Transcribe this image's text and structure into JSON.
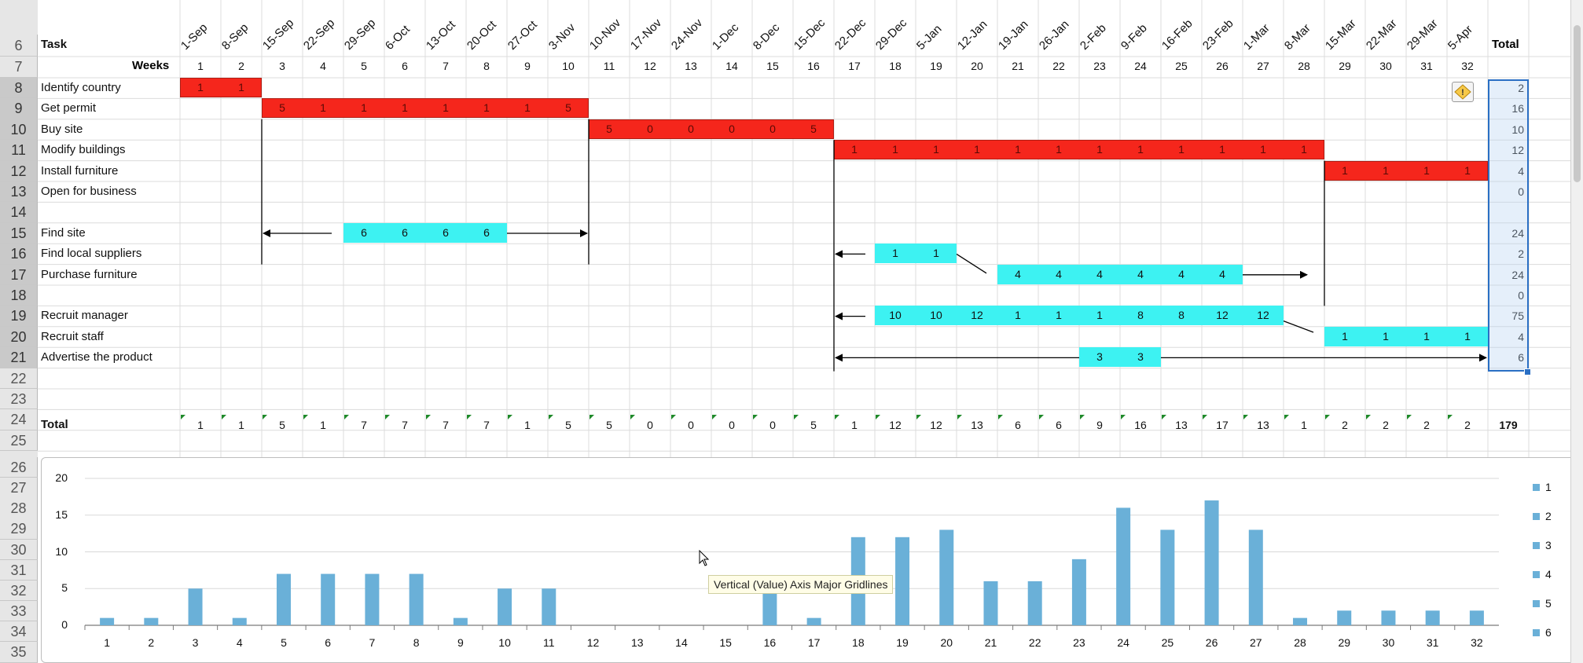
{
  "header": {
    "task_label": "Task",
    "weeks_label": "Weeks",
    "total_label": "Total"
  },
  "dates": [
    "1-Sep",
    "8-Sep",
    "15-Sep",
    "22-Sep",
    "29-Sep",
    "6-Oct",
    "13-Oct",
    "20-Oct",
    "27-Oct",
    "3-Nov",
    "10-Nov",
    "17-Nov",
    "24-Nov",
    "1-Dec",
    "8-Dec",
    "15-Dec",
    "22-Dec",
    "29-Dec",
    "5-Jan",
    "12-Jan",
    "19-Jan",
    "26-Jan",
    "2-Feb",
    "9-Feb",
    "16-Feb",
    "23-Feb",
    "1-Mar",
    "8-Mar",
    "15-Mar",
    "22-Mar",
    "29-Mar",
    "5-Apr"
  ],
  "weeks": [
    1,
    2,
    3,
    4,
    5,
    6,
    7,
    8,
    9,
    10,
    11,
    12,
    13,
    14,
    15,
    16,
    17,
    18,
    19,
    20,
    21,
    22,
    23,
    24,
    25,
    26,
    27,
    28,
    29,
    30,
    31,
    32
  ],
  "row_numbers": [
    "6",
    "7",
    "8",
    "9",
    "10",
    "11",
    "12",
    "13",
    "14",
    "15",
    "16",
    "17",
    "18",
    "19",
    "20",
    "21",
    "22",
    "23",
    "24",
    "25",
    "26",
    "27",
    "28",
    "29",
    "30",
    "31",
    "32",
    "33",
    "34",
    "35"
  ],
  "tasks": [
    {
      "row": "8",
      "name": "Identify country",
      "total": "2",
      "color": "red",
      "cells": [
        {
          "w": 1,
          "v": "1"
        },
        {
          "w": 2,
          "v": "1"
        }
      ]
    },
    {
      "row": "9",
      "name": "Get permit",
      "total": "16",
      "color": "red",
      "cells": [
        {
          "w": 3,
          "v": "5"
        },
        {
          "w": 4,
          "v": "1"
        },
        {
          "w": 5,
          "v": "1"
        },
        {
          "w": 6,
          "v": "1"
        },
        {
          "w": 7,
          "v": "1"
        },
        {
          "w": 8,
          "v": "1"
        },
        {
          "w": 9,
          "v": "1"
        },
        {
          "w": 10,
          "v": "5"
        }
      ]
    },
    {
      "row": "10",
      "name": "Buy site",
      "total": "10",
      "color": "red",
      "cells": [
        {
          "w": 11,
          "v": "5"
        },
        {
          "w": 12,
          "v": "0"
        },
        {
          "w": 13,
          "v": "0"
        },
        {
          "w": 14,
          "v": "0"
        },
        {
          "w": 15,
          "v": "0"
        },
        {
          "w": 16,
          "v": "5"
        }
      ]
    },
    {
      "row": "11",
      "name": "Modify buildings",
      "total": "12",
      "color": "red",
      "cells": [
        {
          "w": 17,
          "v": "1"
        },
        {
          "w": 18,
          "v": "1"
        },
        {
          "w": 19,
          "v": "1"
        },
        {
          "w": 20,
          "v": "1"
        },
        {
          "w": 21,
          "v": "1"
        },
        {
          "w": 22,
          "v": "1"
        },
        {
          "w": 23,
          "v": "1"
        },
        {
          "w": 24,
          "v": "1"
        },
        {
          "w": 25,
          "v": "1"
        },
        {
          "w": 26,
          "v": "1"
        },
        {
          "w": 27,
          "v": "1"
        },
        {
          "w": 28,
          "v": "1"
        }
      ]
    },
    {
      "row": "12",
      "name": "Install furniture",
      "total": "4",
      "color": "red",
      "cells": [
        {
          "w": 29,
          "v": "1"
        },
        {
          "w": 30,
          "v": "1"
        },
        {
          "w": 31,
          "v": "1"
        },
        {
          "w": 32,
          "v": "1"
        }
      ]
    },
    {
      "row": "13",
      "name": "Open for business",
      "total": "0",
      "color": "none",
      "cells": []
    },
    {
      "row": "14",
      "name": "",
      "total": "",
      "color": "none",
      "cells": []
    },
    {
      "row": "15",
      "name": "Find site",
      "total": "24",
      "color": "cyan",
      "cells": [
        {
          "w": 5,
          "v": "6"
        },
        {
          "w": 6,
          "v": "6"
        },
        {
          "w": 7,
          "v": "6"
        },
        {
          "w": 8,
          "v": "6"
        }
      ]
    },
    {
      "row": "16",
      "name": "Find local suppliers",
      "total": "2",
      "color": "cyan",
      "cells": [
        {
          "w": 18,
          "v": "1"
        },
        {
          "w": 19,
          "v": "1"
        }
      ]
    },
    {
      "row": "17",
      "name": "Purchase  furniture",
      "total": "24",
      "color": "cyan",
      "cells": [
        {
          "w": 21,
          "v": "4"
        },
        {
          "w": 22,
          "v": "4"
        },
        {
          "w": 23,
          "v": "4"
        },
        {
          "w": 24,
          "v": "4"
        },
        {
          "w": 25,
          "v": "4"
        },
        {
          "w": 26,
          "v": "4"
        }
      ]
    },
    {
      "row": "18",
      "name": "",
      "total": "0",
      "color": "none",
      "cells": []
    },
    {
      "row": "19",
      "name": "Recruit manager",
      "total": "75",
      "color": "cyan",
      "cells": [
        {
          "w": 18,
          "v": "10"
        },
        {
          "w": 19,
          "v": "10"
        },
        {
          "w": 20,
          "v": "12"
        },
        {
          "w": 21,
          "v": "1"
        },
        {
          "w": 22,
          "v": "1"
        },
        {
          "w": 23,
          "v": "1"
        },
        {
          "w": 24,
          "v": "8"
        },
        {
          "w": 25,
          "v": "8"
        },
        {
          "w": 26,
          "v": "12"
        },
        {
          "w": 27,
          "v": "12"
        }
      ]
    },
    {
      "row": "20",
      "name": "Recruit staff",
      "total": "4",
      "color": "cyan",
      "cells": [
        {
          "w": 29,
          "v": "1"
        },
        {
          "w": 30,
          "v": "1"
        },
        {
          "w": 31,
          "v": "1"
        },
        {
          "w": 32,
          "v": "1"
        }
      ]
    },
    {
      "row": "21",
      "name": "Advertise the product",
      "total": "6",
      "color": "cyan",
      "cells": [
        {
          "w": 23,
          "v": "3"
        },
        {
          "w": 24,
          "v": "3"
        }
      ]
    }
  ],
  "totals_row": {
    "label": "Total",
    "values": [
      1,
      1,
      5,
      1,
      7,
      7,
      7,
      7,
      1,
      5,
      5,
      0,
      0,
      0,
      0,
      5,
      1,
      12,
      12,
      13,
      6,
      6,
      9,
      16,
      13,
      17,
      13,
      1,
      2,
      2,
      2,
      2
    ],
    "grand_total": "179"
  },
  "chart_data": {
    "type": "bar",
    "categories": [
      "1",
      "2",
      "3",
      "4",
      "5",
      "6",
      "7",
      "8",
      "9",
      "10",
      "11",
      "12",
      "13",
      "14",
      "15",
      "16",
      "17",
      "18",
      "19",
      "20",
      "21",
      "22",
      "23",
      "24",
      "25",
      "26",
      "27",
      "28",
      "29",
      "30",
      "31",
      "32"
    ],
    "values": [
      1,
      1,
      5,
      1,
      7,
      7,
      7,
      7,
      1,
      5,
      5,
      0,
      0,
      0,
      0,
      5,
      1,
      12,
      12,
      13,
      6,
      6,
      9,
      16,
      13,
      17,
      13,
      1,
      2,
      2,
      2,
      2
    ],
    "ylim": [
      0,
      20
    ],
    "yticks": [
      "0",
      "5",
      "10",
      "15",
      "20"
    ],
    "grid": true,
    "legend_position": "right",
    "legend": [
      "1",
      "2",
      "3",
      "4",
      "5",
      "6"
    ],
    "bar_color": "#6ab0d8"
  },
  "tooltip": {
    "text": "Vertical (Value) Axis Major Gridlines"
  },
  "colors": {
    "red": "#f5261c",
    "cyan": "#3df2f2",
    "bar": "#6ab0d8",
    "selection": "#2a6fc4"
  }
}
